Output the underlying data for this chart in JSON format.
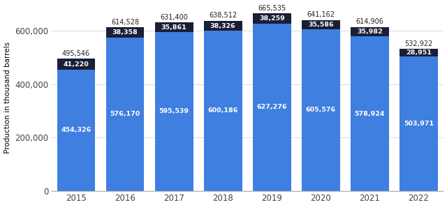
{
  "years": [
    2015,
    2016,
    2017,
    2018,
    2019,
    2020,
    2021,
    2022
  ],
  "bottom_values": [
    454326,
    576170,
    595539,
    600186,
    627276,
    605576,
    578924,
    503971
  ],
  "top_values": [
    41220,
    38358,
    35861,
    38326,
    38259,
    35586,
    35982,
    28951
  ],
  "total_labels": [
    "495,546",
    "614,528",
    "631,400",
    "638,512",
    "665,535",
    "641,162",
    "614,906",
    "532,922"
  ],
  "bottom_labels": [
    "454,326",
    "576,170",
    "595,539",
    "600,186",
    "627,276",
    "605,576",
    "578,924",
    "503,971"
  ],
  "top_labels": [
    "41,220",
    "38,358",
    "35,861",
    "38,326",
    "38,259",
    "35,586",
    "35,982",
    "28,951"
  ],
  "bar_color_blue": "#3f7fe0",
  "bar_color_dark": "#1a1f36",
  "background_color": "#ffffff",
  "ylabel": "Production in thousand barrels",
  "ylim": [
    0,
    700000
  ],
  "ytick_labels": [
    "0",
    "200,000",
    "400,000",
    "600,000"
  ],
  "ytick_values": [
    0,
    200000,
    400000,
    600000
  ],
  "grid_color": "#dddddd",
  "label_fontsize": 6.8,
  "total_label_fontsize": 7.0
}
